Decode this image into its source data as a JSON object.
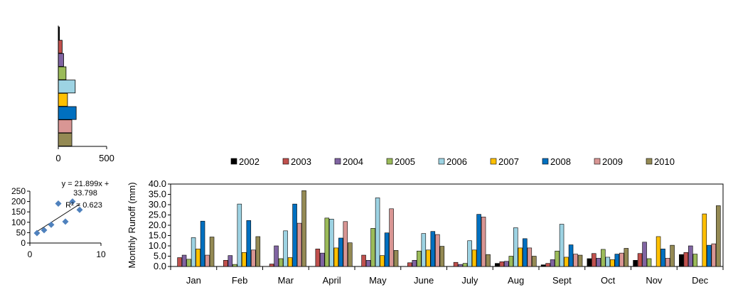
{
  "chart_data": [
    {
      "type": "bar",
      "orientation": "horizontal",
      "categories": [
        "2002",
        "2003",
        "2004",
        "2005",
        "2006",
        "2007",
        "2008",
        "2009",
        "2010"
      ],
      "values": [
        12,
        40,
        55,
        80,
        175,
        95,
        185,
        140,
        140
      ],
      "colors": [
        "#000000",
        "#C0504D",
        "#8064A2",
        "#9BBB59",
        "#9DD3E3",
        "#FFC000",
        "#0070C0",
        "#D99694",
        "#948A54"
      ],
      "xlim": [
        0,
        500
      ],
      "x_ticks": [
        "0",
        "500"
      ],
      "grid": false,
      "legend": "none"
    },
    {
      "type": "scatter",
      "points": [
        [
          1,
          48
        ],
        [
          2,
          62
        ],
        [
          3,
          88
        ],
        [
          4,
          190
        ],
        [
          5,
          103
        ],
        [
          6,
          200
        ],
        [
          7,
          160
        ]
      ],
      "trendline": {
        "slope": 21.899,
        "intercept": 33.798
      },
      "annotation": {
        "eq_line1": "y = 21.899x +",
        "eq_line2": "33.798",
        "r2": "R² = 0.623"
      },
      "xlim": [
        0,
        10
      ],
      "ylim": [
        0,
        250
      ],
      "x_ticks": [
        "0",
        "10"
      ],
      "y_ticks": [
        "0",
        "50",
        "100",
        "150",
        "200",
        "250"
      ],
      "color": "#4F81BD",
      "grid": false
    },
    {
      "type": "bar",
      "ylabel": "Monthly  Runoff (mm)",
      "categories": [
        "Jan",
        "Feb",
        "Mar",
        "April",
        "May",
        "June",
        "July",
        "Aug",
        "Sept",
        "Oct",
        "Nov",
        "Dec"
      ],
      "series": [
        {
          "name": "2002",
          "color": "#000000",
          "values": [
            0,
            0,
            0,
            0,
            0,
            0,
            0,
            1.5,
            0.8,
            3.8,
            3.0,
            5.8
          ]
        },
        {
          "name": "2003",
          "color": "#C0504D",
          "values": [
            4.3,
            3.0,
            1.2,
            8.5,
            5.5,
            1.8,
            2.0,
            2.3,
            1.5,
            6.3,
            6.3,
            6.8
          ]
        },
        {
          "name": "2004",
          "color": "#8064A2",
          "values": [
            5.5,
            5.3,
            10.0,
            6.5,
            3.0,
            3.0,
            1.0,
            2.5,
            3.3,
            4.0,
            11.8,
            10.0
          ]
        },
        {
          "name": "2005",
          "color": "#9BBB59",
          "values": [
            3.5,
            1.0,
            3.8,
            23.5,
            18.5,
            7.5,
            1.5,
            5.0,
            7.5,
            8.3,
            3.8,
            6.0
          ]
        },
        {
          "name": "2006",
          "color": "#9DD3E3",
          "values": [
            14.0,
            30.3,
            17.3,
            23.0,
            33.3,
            16.0,
            12.5,
            18.8,
            20.5,
            4.5,
            0,
            0
          ]
        },
        {
          "name": "2007",
          "color": "#FFC000",
          "values": [
            8.5,
            6.8,
            4.3,
            9.0,
            5.3,
            8.0,
            8.0,
            9.0,
            4.5,
            3.3,
            14.5,
            25.5
          ]
        },
        {
          "name": "2008",
          "color": "#0070C0",
          "values": [
            22.0,
            22.3,
            30.3,
            13.8,
            16.3,
            17.0,
            25.3,
            13.5,
            10.5,
            6.0,
            8.5,
            10.3
          ]
        },
        {
          "name": "2009",
          "color": "#D99694",
          "values": [
            5.5,
            8.0,
            21.0,
            21.8,
            28.0,
            15.5,
            24.0,
            9.0,
            6.0,
            6.5,
            4.0,
            11.0
          ]
        },
        {
          "name": "2010",
          "color": "#948A54",
          "values": [
            14.3,
            14.5,
            36.8,
            11.5,
            7.8,
            9.8,
            5.8,
            5.0,
            5.5,
            8.8,
            10.3,
            29.5
          ]
        }
      ],
      "ylim": [
        0,
        40
      ],
      "y_ticks": [
        "0.0",
        "5.0",
        "10.0",
        "15.0",
        "20.0",
        "25.0",
        "30.0",
        "35.0",
        "40.0"
      ],
      "legend": "top",
      "grid": false
    }
  ]
}
